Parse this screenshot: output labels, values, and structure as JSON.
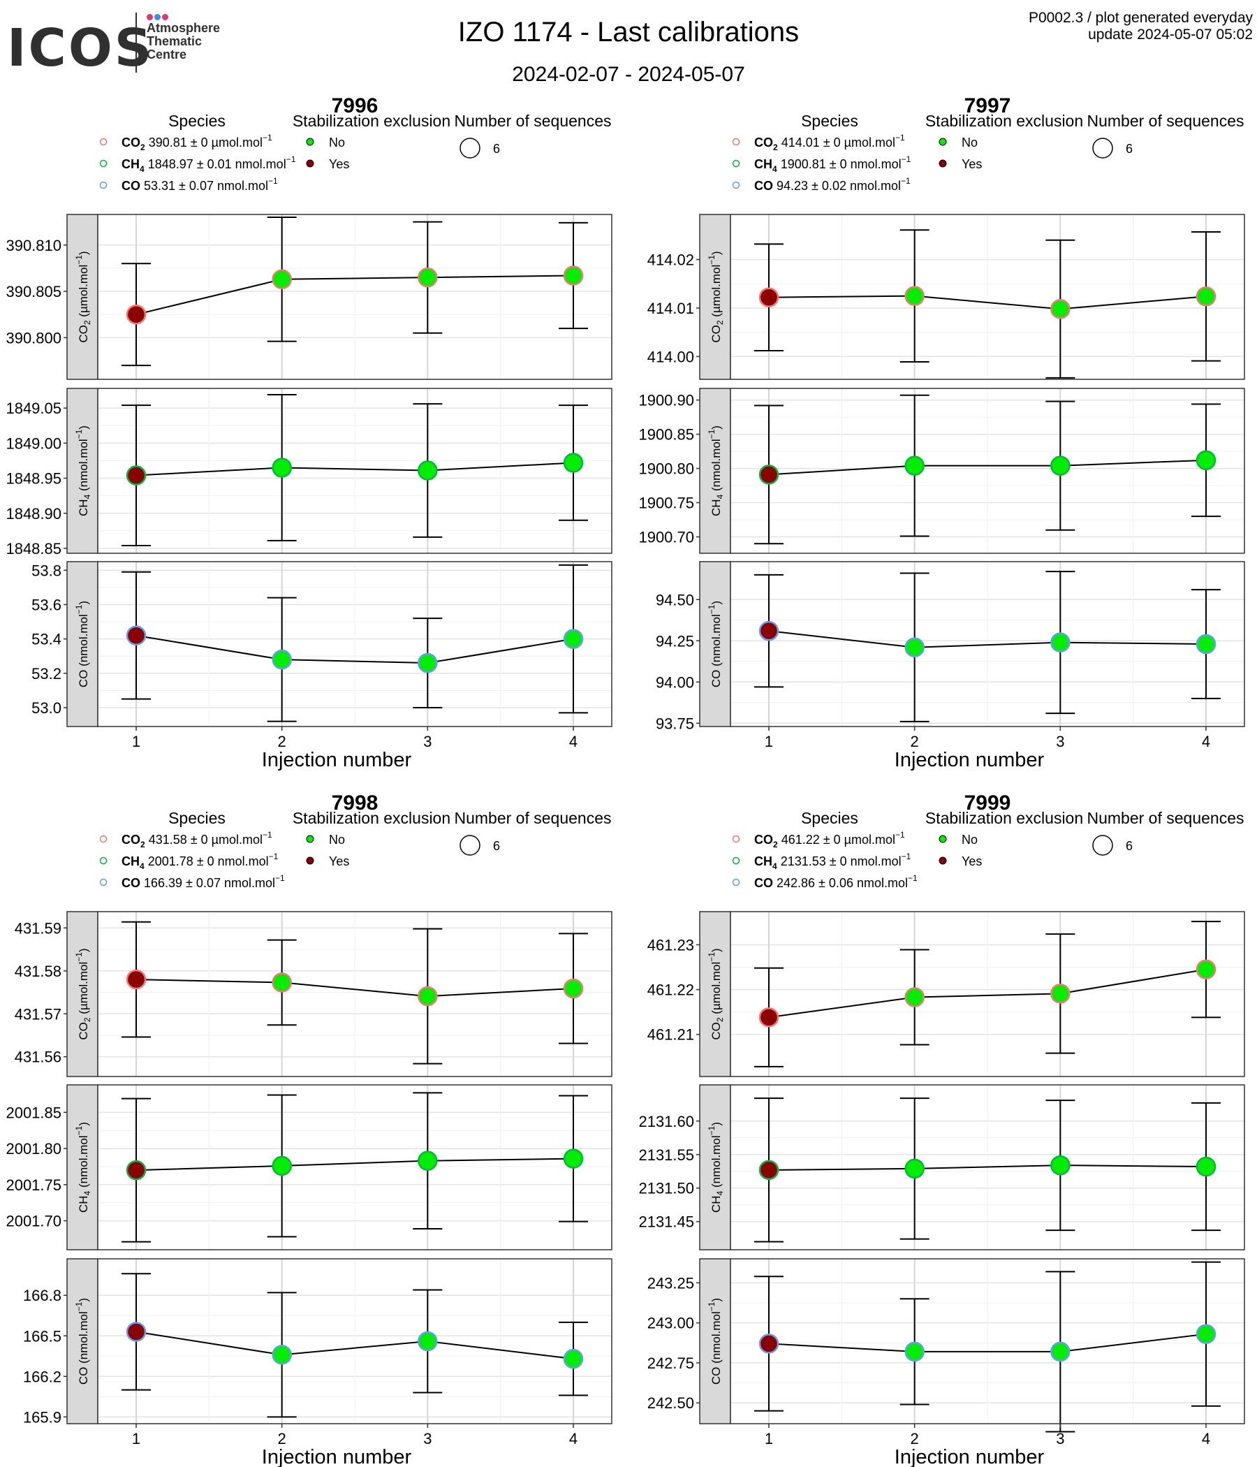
{
  "header": {
    "logo_text": "ICOS",
    "logo_subtitle": "Atmosphere\nThematic\nCentre",
    "logo_dot_colors": [
      "#e8336d",
      "#3a8ee6",
      "#e8336d"
    ],
    "title": "IZO 1174 - Last calibrations",
    "date_range": "2024-02-07 - 2024-05-07",
    "info_line1": "P0002.3 / plot generated everyday",
    "info_line2": "update  2024-05-07 05:02"
  },
  "legend": {
    "species_title": "Species",
    "stab_title": "Stabilization exclusion",
    "stab_items": [
      "No",
      "Yes"
    ],
    "nseq_title": "Number of sequences",
    "nseq_value": "6",
    "species_colors": {
      "CO2": "#f8766d",
      "CH4": "#00ba38",
      "CO": "#619cff"
    }
  },
  "colors": {
    "stab_no": "#00ee00",
    "stab_yes": "#8b0000",
    "strip": "#d9d9d9"
  },
  "chart_data": [
    {
      "type": "scatter",
      "title": "7996",
      "xlabel": "Injection number",
      "x": [
        1,
        2,
        3,
        4
      ],
      "legend_species": [
        {
          "species": "CO",
          "sub": "2",
          "text": "390.81 ± 0 µmol.mol",
          "sup": "−1"
        },
        {
          "species": "CH",
          "sub": "4",
          "text": "1848.97 ± 0.01 nmol.mol",
          "sup": "−1"
        },
        {
          "species": "CO",
          "sub": "",
          "text": "53.31 ± 0.07 nmol.mol",
          "sup": "−1"
        }
      ],
      "panels": [
        {
          "strip": "CO",
          "strip_sub": "2",
          "strip_unit": "(µmol.mol",
          "strip_sup": "−1",
          "strip_end": ")",
          "values": [
            390.8025,
            390.8063,
            390.8065,
            390.8067
          ],
          "err": [
            0.0055,
            0.0067,
            0.006,
            0.0057
          ],
          "stab": [
            "Yes",
            "No",
            "No",
            "No"
          ],
          "ylim": [
            390.7955,
            390.8133
          ],
          "ticks": [
            390.8,
            390.805,
            390.81
          ],
          "tick_labels": [
            "390.800",
            "390.805",
            "390.810"
          ]
        },
        {
          "strip": "CH",
          "strip_sub": "4",
          "strip_unit": "(nmol.mol",
          "strip_sup": "−1",
          "strip_end": ")",
          "values": [
            1848.954,
            1848.965,
            1848.961,
            1848.972
          ],
          "err": [
            0.1,
            0.104,
            0.095,
            0.082
          ],
          "stab": [
            "Yes",
            "No",
            "No",
            "No"
          ],
          "ylim": [
            1848.843,
            1849.078
          ],
          "ticks": [
            1848.85,
            1848.9,
            1848.95,
            1849.0,
            1849.05
          ],
          "tick_labels": [
            "1848.85",
            "1848.90",
            "1848.95",
            "1849.00",
            "1849.05"
          ]
        },
        {
          "strip": "CO",
          "strip_sub": "",
          "strip_unit": "(nmol.mol",
          "strip_sup": "−1",
          "strip_end": ")",
          "values": [
            53.42,
            53.28,
            53.26,
            53.4
          ],
          "err": [
            0.37,
            0.36,
            0.26,
            0.43
          ],
          "stab": [
            "Yes",
            "No",
            "No",
            "No"
          ],
          "ylim": [
            52.89,
            53.85
          ],
          "ticks": [
            53.0,
            53.2,
            53.4,
            53.6,
            53.8
          ],
          "tick_labels": [
            "53.0",
            "53.2",
            "53.4",
            "53.6",
            "53.8"
          ]
        }
      ]
    },
    {
      "type": "scatter",
      "title": "7997",
      "xlabel": "Injection number",
      "x": [
        1,
        2,
        3,
        4
      ],
      "legend_species": [
        {
          "species": "CO",
          "sub": "2",
          "text": "414.01 ± 0 µmol.mol",
          "sup": "−1"
        },
        {
          "species": "CH",
          "sub": "4",
          "text": "1900.81 ± 0 nmol.mol",
          "sup": "−1"
        },
        {
          "species": "CO",
          "sub": "",
          "text": "94.23 ± 0.02 nmol.mol",
          "sup": "−1"
        }
      ],
      "panels": [
        {
          "strip": "CO",
          "strip_sub": "2",
          "strip_unit": "(µmol.mol",
          "strip_sup": "−1",
          "strip_end": ")",
          "values": [
            414.0122,
            414.0125,
            414.0098,
            414.0124
          ],
          "err": [
            0.011,
            0.0136,
            0.0142,
            0.0133
          ],
          "stab": [
            "Yes",
            "No",
            "No",
            "No"
          ],
          "ylim": [
            413.9953,
            414.0293
          ],
          "ticks": [
            414.0,
            414.01,
            414.02
          ],
          "tick_labels": [
            "414.00",
            "414.01",
            "414.02"
          ]
        },
        {
          "strip": "CH",
          "strip_sub": "4",
          "strip_unit": "(nmol.mol",
          "strip_sup": "−1",
          "strip_end": ")",
          "values": [
            1900.791,
            1900.804,
            1900.804,
            1900.812
          ],
          "err": [
            0.101,
            0.103,
            0.094,
            0.082
          ],
          "stab": [
            "Yes",
            "No",
            "No",
            "No"
          ],
          "ylim": [
            1900.676,
            1900.917
          ],
          "ticks": [
            1900.7,
            1900.75,
            1900.8,
            1900.85,
            1900.9
          ],
          "tick_labels": [
            "1900.70",
            "1900.75",
            "1900.80",
            "1900.85",
            "1900.90"
          ]
        },
        {
          "strip": "CO",
          "strip_sub": "",
          "strip_unit": "(nmol.mol",
          "strip_sup": "−1",
          "strip_end": ")",
          "values": [
            94.31,
            94.21,
            94.24,
            94.23
          ],
          "err": [
            0.34,
            0.45,
            0.43,
            0.33
          ],
          "stab": [
            "Yes",
            "No",
            "No",
            "No"
          ],
          "ylim": [
            93.73,
            94.73
          ],
          "ticks": [
            93.75,
            94.0,
            94.25,
            94.5
          ],
          "tick_labels": [
            "93.75",
            "94.00",
            "94.25",
            "94.50"
          ]
        }
      ]
    },
    {
      "type": "scatter",
      "title": "7998",
      "xlabel": "Injection number",
      "x": [
        1,
        2,
        3,
        4
      ],
      "legend_species": [
        {
          "species": "CO",
          "sub": "2",
          "text": "431.58 ± 0 µmol.mol",
          "sup": "−1"
        },
        {
          "species": "CH",
          "sub": "4",
          "text": "2001.78 ± 0 nmol.mol",
          "sup": "−1"
        },
        {
          "species": "CO",
          "sub": "",
          "text": "166.39 ± 0.07 nmol.mol",
          "sup": "−1"
        }
      ],
      "panels": [
        {
          "strip": "CO",
          "strip_sub": "2",
          "strip_unit": "(µmol.mol",
          "strip_sup": "−1",
          "strip_end": ")",
          "values": [
            431.578,
            431.5773,
            431.5741,
            431.5759
          ],
          "err": [
            0.0134,
            0.0099,
            0.0157,
            0.0128
          ],
          "stab": [
            "Yes",
            "No",
            "No",
            "No"
          ],
          "ylim": [
            431.5554,
            431.5938
          ],
          "ticks": [
            431.56,
            431.57,
            431.58,
            431.59
          ],
          "tick_labels": [
            "431.56",
            "431.57",
            "431.58",
            "431.59"
          ]
        },
        {
          "strip": "CH",
          "strip_sub": "4",
          "strip_unit": "(nmol.mol",
          "strip_sup": "−1",
          "strip_end": ")",
          "values": [
            2001.77,
            2001.776,
            2001.783,
            2001.786
          ],
          "err": [
            0.099,
            0.098,
            0.094,
            0.087
          ],
          "stab": [
            "Yes",
            "No",
            "No",
            "No"
          ],
          "ylim": [
            2001.66,
            2001.888
          ],
          "ticks": [
            2001.7,
            2001.75,
            2001.8,
            2001.85
          ],
          "tick_labels": [
            "2001.70",
            "2001.75",
            "2001.80",
            "2001.85"
          ]
        },
        {
          "strip": "CO",
          "strip_sub": "",
          "strip_unit": "(nmol.mol",
          "strip_sup": "−1",
          "strip_end": ")",
          "values": [
            166.53,
            166.36,
            166.46,
            166.33
          ],
          "err": [
            0.43,
            0.46,
            0.38,
            0.27
          ],
          "stab": [
            "Yes",
            "No",
            "No",
            "No"
          ],
          "ylim": [
            165.85,
            167.07
          ],
          "ticks": [
            165.9,
            166.2,
            166.5,
            166.8
          ],
          "tick_labels": [
            "165.9",
            "166.2",
            "166.5",
            "166.8"
          ]
        }
      ]
    },
    {
      "type": "scatter",
      "title": "7999",
      "xlabel": "Injection number",
      "x": [
        1,
        2,
        3,
        4
      ],
      "legend_species": [
        {
          "species": "CO",
          "sub": "2",
          "text": "461.22 ± 0 µmol.mol",
          "sup": "−1"
        },
        {
          "species": "CH",
          "sub": "4",
          "text": "2131.53 ± 0 nmol.mol",
          "sup": "−1"
        },
        {
          "species": "CO",
          "sub": "",
          "text": "242.86 ± 0.06 nmol.mol",
          "sup": "−1"
        }
      ],
      "panels": [
        {
          "strip": "CO",
          "strip_sub": "2",
          "strip_unit": "(µmol.mol",
          "strip_sup": "−1",
          "strip_end": ")",
          "values": [
            461.2138,
            461.2183,
            461.2191,
            461.2245
          ],
          "err": [
            0.011,
            0.0106,
            0.0133,
            0.0107
          ],
          "stab": [
            "Yes",
            "No",
            "No",
            "No"
          ],
          "ylim": [
            461.2006,
            461.2374
          ],
          "ticks": [
            461.21,
            461.22,
            461.23
          ],
          "tick_labels": [
            "461.21",
            "461.22",
            "461.23"
          ]
        },
        {
          "strip": "CH",
          "strip_sub": "4",
          "strip_unit": "(nmol.mol",
          "strip_sup": "−1",
          "strip_end": ")",
          "values": [
            2131.527,
            2131.529,
            2131.534,
            2131.532
          ],
          "err": [
            0.107,
            0.105,
            0.097,
            0.095
          ],
          "stab": [
            "Yes",
            "No",
            "No",
            "No"
          ],
          "ylim": [
            2131.408,
            2131.654
          ],
          "ticks": [
            2131.45,
            2131.5,
            2131.55,
            2131.6
          ],
          "tick_labels": [
            "2131.45",
            "2131.50",
            "2131.55",
            "2131.60"
          ]
        },
        {
          "strip": "CO",
          "strip_sub": "",
          "strip_unit": "(nmol.mol",
          "strip_sup": "−1",
          "strip_end": ")",
          "values": [
            242.87,
            242.82,
            242.82,
            242.93
          ],
          "err": [
            0.42,
            0.33,
            0.5,
            0.45
          ],
          "stab": [
            "Yes",
            "No",
            "No",
            "No"
          ],
          "ylim": [
            242.37,
            243.4
          ],
          "ticks": [
            242.5,
            242.75,
            243.0,
            243.25
          ],
          "tick_labels": [
            "242.50",
            "242.75",
            "243.00",
            "243.25"
          ]
        }
      ]
    }
  ]
}
